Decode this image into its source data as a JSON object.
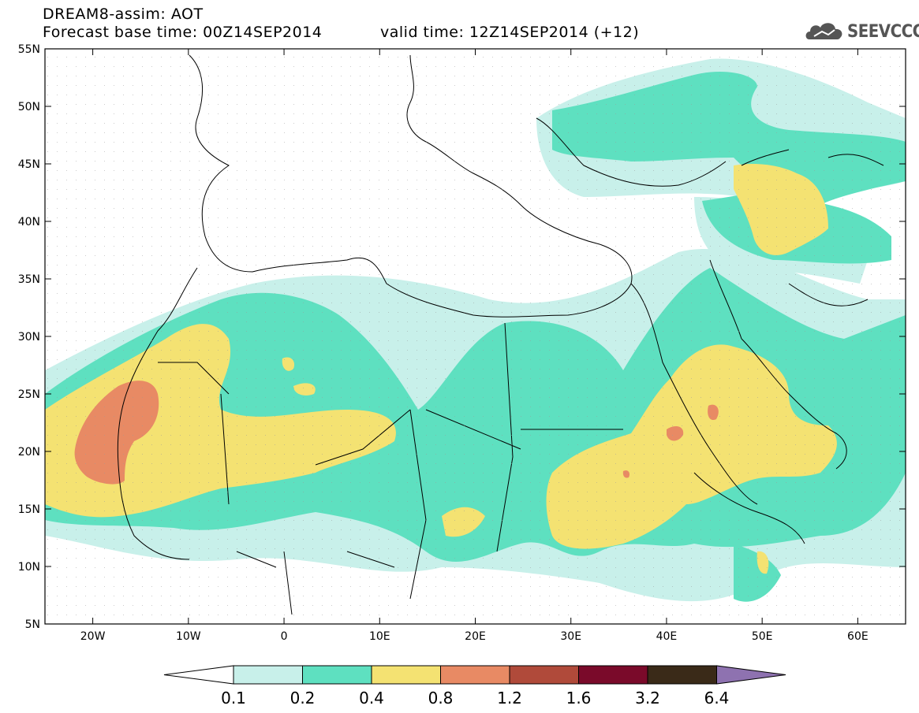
{
  "header": {
    "line1": "DREAM8-assim: AOT",
    "line2": "Forecast base time: 00Z14SEP2014",
    "valid": "valid time: 12Z14SEP2014 (+12)"
  },
  "logo": {
    "text": "SEEVCCC",
    "icon": "cloud-logo-icon"
  },
  "axes": {
    "lon_labels": [
      "20W",
      "10W",
      "0",
      "10E",
      "20E",
      "30E",
      "40E",
      "50E",
      "60E"
    ],
    "lon_values": [
      -20,
      -10,
      0,
      10,
      20,
      30,
      40,
      50,
      60
    ],
    "lat_labels": [
      "55N",
      "50N",
      "45N",
      "40N",
      "35N",
      "30N",
      "25N",
      "20N",
      "15N",
      "10N",
      "5N"
    ],
    "lat_values": [
      55,
      50,
      45,
      40,
      35,
      30,
      25,
      20,
      15,
      10,
      5
    ],
    "lon_range": [
      -25,
      65
    ],
    "lat_range": [
      5,
      55
    ]
  },
  "colorbar": {
    "labels": [
      "0.1",
      "0.2",
      "0.4",
      "0.8",
      "1.2",
      "1.6",
      "3.2",
      "6.4"
    ],
    "colors": [
      "#ffffff",
      "#c8f0ea",
      "#5ee0c0",
      "#f4e272",
      "#e88a64",
      "#b04a3a",
      "#7a0a2a",
      "#3a2a18",
      "#8e72b0"
    ]
  }
}
